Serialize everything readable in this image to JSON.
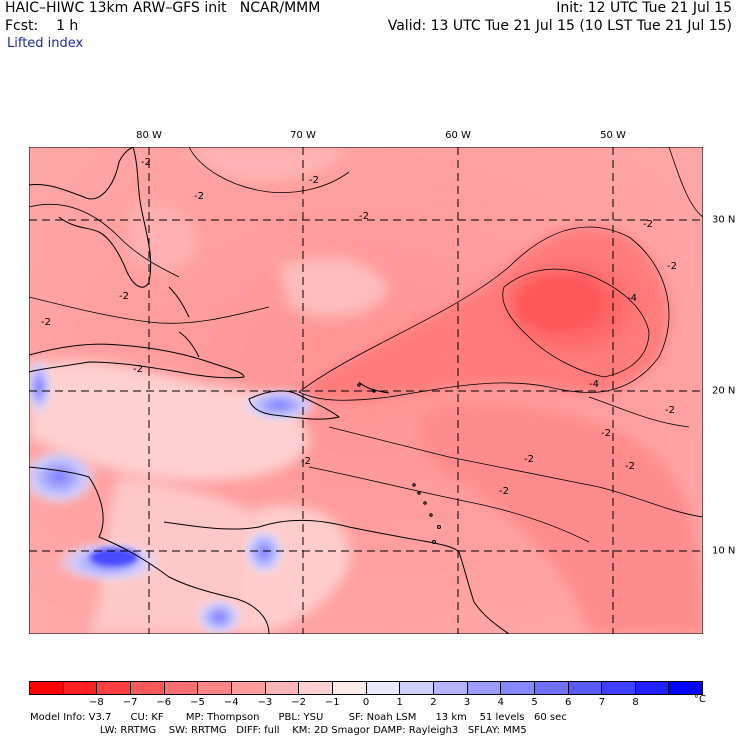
{
  "header": {
    "title": "HAIC–HIWC 13km ARW–GFS init   NCAR/MMM",
    "init": "Init: 12 UTC Tue 21 Jul 15",
    "fcst_label": "Fcst:",
    "fcst_value": "1 h",
    "valid": "Valid: 13 UTC Tue 21 Jul 15 (10 LST Tue 21 Jul 15)",
    "field": "Lifted index"
  },
  "axes": {
    "lon_labels": [
      {
        "label": "80 W",
        "lon": -80
      },
      {
        "label": "70 W",
        "lon": -70
      },
      {
        "label": "60 W",
        "lon": -60
      },
      {
        "label": "50 W",
        "lon": -50
      }
    ],
    "lat_labels": [
      {
        "label": "30 N",
        "lat": 30
      },
      {
        "label": "20 N",
        "lat": 20
      },
      {
        "label": "10 N",
        "lat": 10
      }
    ]
  },
  "contour_labels": [
    "-2",
    "-2",
    "-2",
    "-2",
    "-2",
    "-2",
    "-2",
    "-2",
    "-2",
    "-2",
    "-2",
    "-2",
    "-2",
    "-2",
    "-2",
    "-4",
    "-4"
  ],
  "colorbar": {
    "colors": [
      "#ff0000",
      "#ff2020",
      "#ff4040",
      "#ff5a5a",
      "#ff7070",
      "#ff8686",
      "#ff9d9d",
      "#ffb6b6",
      "#ffd0d0",
      "#ffeaea",
      "#eaeaff",
      "#d0d0ff",
      "#b6b6ff",
      "#9d9dff",
      "#8686ff",
      "#7070ff",
      "#5a5aff",
      "#4040ff",
      "#2020ff",
      "#0000ff"
    ],
    "ticks": [
      "−8",
      "−7",
      "−6",
      "−5",
      "−4",
      "−3",
      "−2",
      "−1",
      "0",
      "1",
      "2",
      "3",
      "4",
      "5",
      "6",
      "7",
      "8"
    ],
    "unit": "°C"
  },
  "footer": {
    "line1": "Model Info: V3.7      CU: KF       MP: Thompson      PBL: YSU        SF: Noah LSM      13 km    51 levels   60 sec",
    "line2": "                      LW: RRTMG    SW: RRTMG   DIFF: full    KM: 2D Smagor DAMP: Rayleigh3   SFLAY: MM5"
  }
}
